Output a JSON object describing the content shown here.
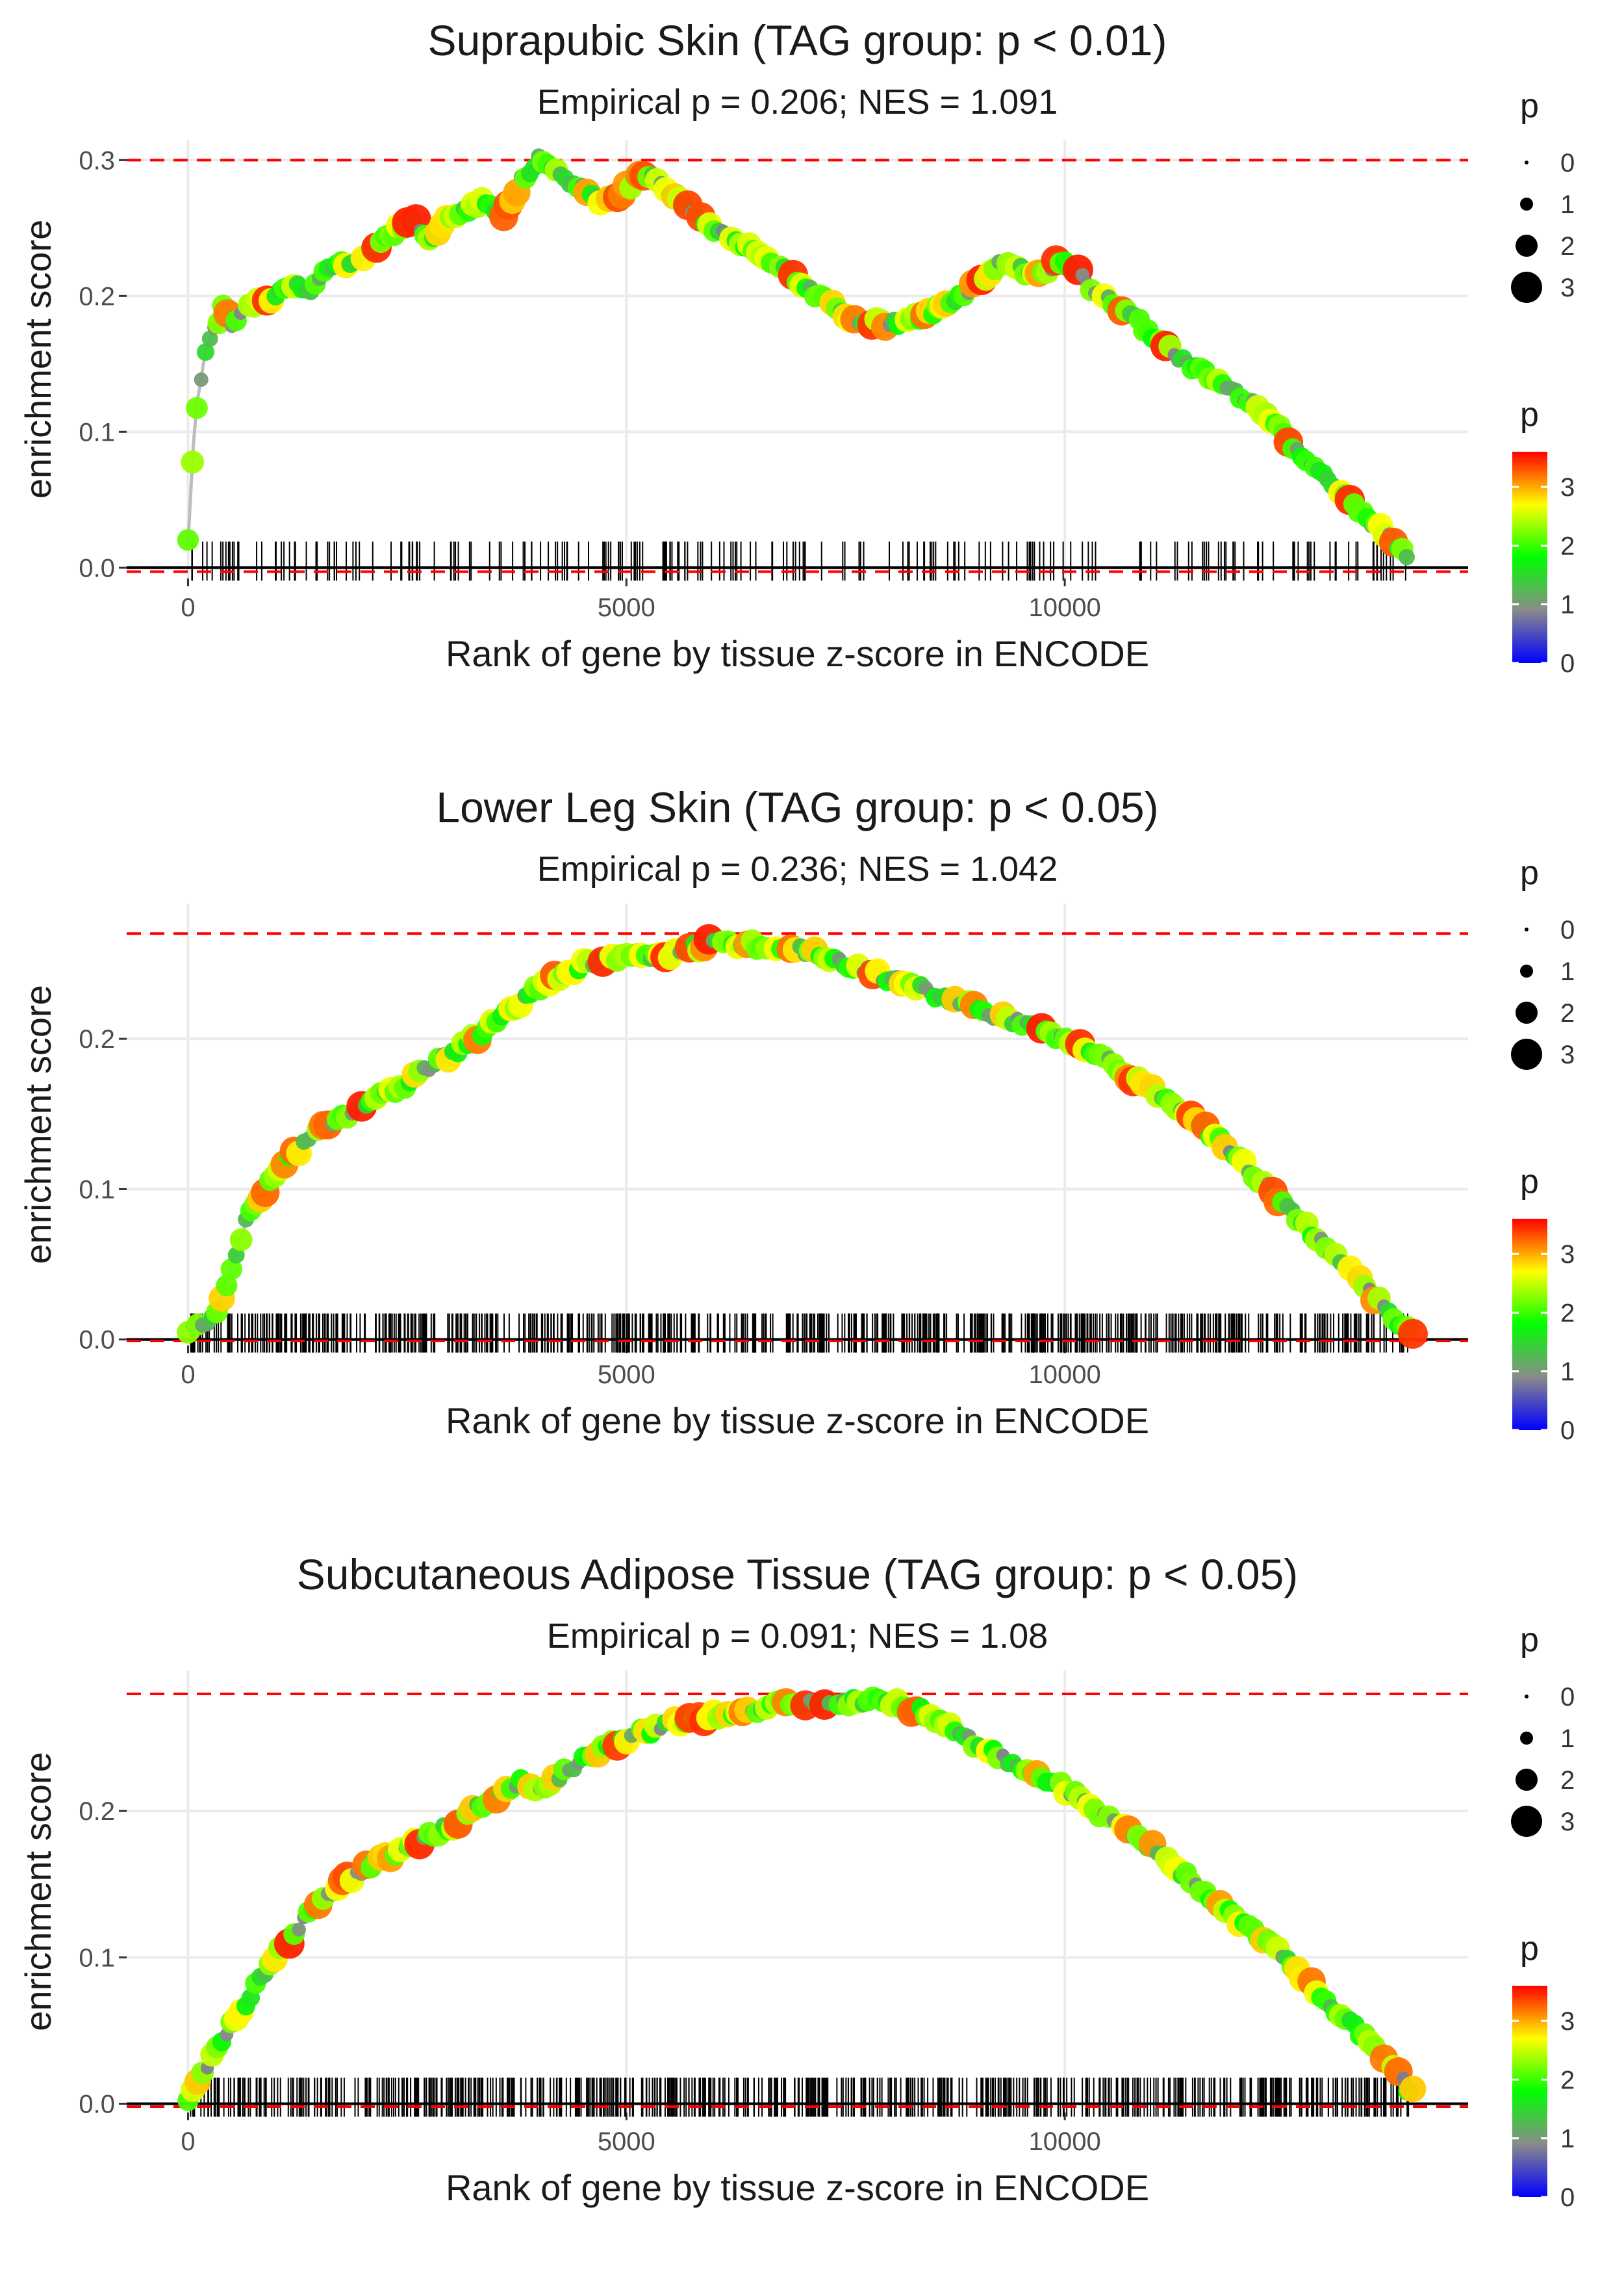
{
  "colors": {
    "gradient": [
      "#0000ff",
      "#8a8a8a",
      "#00ff00",
      "#ffff00",
      "#ff0000"
    ],
    "reference_line": "#ff0000",
    "curve": "#bdbdbd",
    "grid": "#ebebeb",
    "rug": "#000000"
  },
  "chart_data": [
    {
      "type": "scatter",
      "title": "Suprapubic Skin (TAG group: p < 0.01)",
      "subtitle": "Empirical p = 0.206; NES = 1.091",
      "xlabel": "Rank of gene by tissue z-score in ENCODE",
      "ylabel": "enrichment score",
      "xlim": [
        -700,
        14600
      ],
      "ylim": [
        -0.008,
        0.315
      ],
      "x_ticks": [
        0,
        5000,
        10000
      ],
      "x_tick_labels": [
        "0",
        "5000",
        "10000"
      ],
      "y_ticks": [
        0.0,
        0.1,
        0.2,
        0.3
      ],
      "y_tick_labels": [
        "0.0",
        "0.1",
        "0.2",
        "0.3"
      ],
      "reference_lines": [
        0.3,
        -0.003
      ],
      "curve_x": [
        0,
        60,
        100,
        150,
        200,
        300,
        400,
        500,
        650,
        800,
        1000,
        1200,
        1400,
        1600,
        1800,
        2000,
        2200,
        2400,
        2600,
        2800,
        3000,
        3200,
        3400,
        3600,
        3800,
        4000,
        4100,
        4300,
        4500,
        4700,
        4900,
        5100,
        5300,
        5600,
        6000,
        6400,
        6800,
        7200,
        7600,
        8000,
        8400,
        8800,
        9100,
        9300,
        9500,
        9700,
        9900,
        10100,
        10400,
        10700,
        11000,
        11400,
        11800,
        12200,
        12600,
        13000,
        13300,
        13600,
        13900
      ],
      "curve_y": [
        0.018,
        0.09,
        0.12,
        0.14,
        0.16,
        0.175,
        0.19,
        0.18,
        0.19,
        0.195,
        0.2,
        0.21,
        0.205,
        0.22,
        0.225,
        0.23,
        0.24,
        0.25,
        0.255,
        0.24,
        0.26,
        0.265,
        0.27,
        0.26,
        0.285,
        0.3,
        0.295,
        0.285,
        0.28,
        0.27,
        0.275,
        0.285,
        0.29,
        0.27,
        0.25,
        0.235,
        0.22,
        0.2,
        0.18,
        0.18,
        0.185,
        0.2,
        0.215,
        0.225,
        0.22,
        0.215,
        0.225,
        0.22,
        0.2,
        0.19,
        0.17,
        0.15,
        0.135,
        0.12,
        0.09,
        0.065,
        0.045,
        0.028,
        0.01
      ],
      "point_stride": 50,
      "rug_count": 220,
      "legend": {
        "size_title": "p",
        "size_breaks": [
          "0",
          "1",
          "2",
          "3"
        ],
        "color_title": "p",
        "color_breaks": [
          "3",
          "2",
          "1",
          "0"
        ],
        "color_range": [
          0,
          3.6
        ]
      }
    },
    {
      "type": "scatter",
      "title": "Lower Leg Skin (TAG group: p < 0.05)",
      "subtitle": "Empirical p = 0.236; NES = 1.042",
      "xlabel": "Rank of gene by tissue z-score in ENCODE",
      "ylabel": "enrichment score",
      "xlim": [
        -700,
        14600
      ],
      "ylim": [
        -0.004,
        0.29
      ],
      "x_ticks": [
        0,
        5000,
        10000
      ],
      "x_tick_labels": [
        "0",
        "5000",
        "10000"
      ],
      "y_ticks": [
        0.0,
        0.1,
        0.2
      ],
      "y_tick_labels": [
        "0.0",
        "0.1",
        "0.2"
      ],
      "reference_lines": [
        0.27,
        -0.001
      ],
      "curve_x": [
        0,
        300,
        450,
        700,
        1000,
        1500,
        2000,
        2500,
        3000,
        3500,
        4000,
        4500,
        5000,
        5500,
        6000,
        6500,
        7000,
        7500,
        8000,
        8500,
        9000,
        9500,
        10000,
        10500,
        11000,
        11500,
        12000,
        12500,
        13000,
        13500,
        13800,
        14000
      ],
      "curve_y": [
        0.005,
        0.015,
        0.04,
        0.085,
        0.11,
        0.14,
        0.155,
        0.17,
        0.19,
        0.21,
        0.235,
        0.25,
        0.255,
        0.255,
        0.265,
        0.262,
        0.26,
        0.25,
        0.24,
        0.23,
        0.22,
        0.21,
        0.2,
        0.185,
        0.165,
        0.145,
        0.12,
        0.09,
        0.06,
        0.03,
        0.012,
        0.002
      ],
      "point_stride": 55,
      "rug_count": 650,
      "legend": {
        "size_title": "p",
        "size_breaks": [
          "0",
          "1",
          "2",
          "3"
        ],
        "color_title": "p",
        "color_breaks": [
          "3",
          "2",
          "1",
          "0"
        ],
        "color_range": [
          0,
          3.6
        ]
      }
    },
    {
      "type": "scatter",
      "title": "Subcutaneous Adipose Tissue (TAG group: p < 0.05)",
      "subtitle": "Empirical p = 0.091; NES = 1.08",
      "xlabel": "Rank of gene by tissue z-score in ENCODE",
      "ylabel": "enrichment score",
      "xlim": [
        -700,
        14600
      ],
      "ylim": [
        -0.006,
        0.296
      ],
      "x_ticks": [
        0,
        5000,
        10000
      ],
      "x_tick_labels": [
        "0",
        "5000",
        "10000"
      ],
      "y_ticks": [
        0.0,
        0.1,
        0.2
      ],
      "y_tick_labels": [
        "0.0",
        "0.1",
        "0.2"
      ],
      "reference_lines": [
        0.28,
        -0.002
      ],
      "curve_x": [
        0,
        200,
        500,
        1000,
        1500,
        2000,
        2500,
        3000,
        3500,
        3800,
        4000,
        4500,
        5000,
        5500,
        6000,
        6500,
        7000,
        7500,
        8000,
        8500,
        9000,
        9500,
        10000,
        10500,
        11000,
        11500,
        12000,
        12500,
        13000,
        13500,
        13800,
        14000
      ],
      "curve_y": [
        0.005,
        0.025,
        0.055,
        0.1,
        0.14,
        0.16,
        0.175,
        0.19,
        0.21,
        0.22,
        0.215,
        0.235,
        0.25,
        0.26,
        0.265,
        0.27,
        0.275,
        0.275,
        0.275,
        0.265,
        0.245,
        0.23,
        0.215,
        0.195,
        0.175,
        0.15,
        0.125,
        0.1,
        0.07,
        0.04,
        0.02,
        0.005
      ],
      "point_stride": 55,
      "rug_count": 620,
      "legend": {
        "size_title": "p",
        "size_breaks": [
          "0",
          "1",
          "2",
          "3"
        ],
        "color_title": "p",
        "color_breaks": [
          "3",
          "2",
          "1",
          "0"
        ],
        "color_range": [
          0,
          3.6
        ]
      }
    }
  ]
}
